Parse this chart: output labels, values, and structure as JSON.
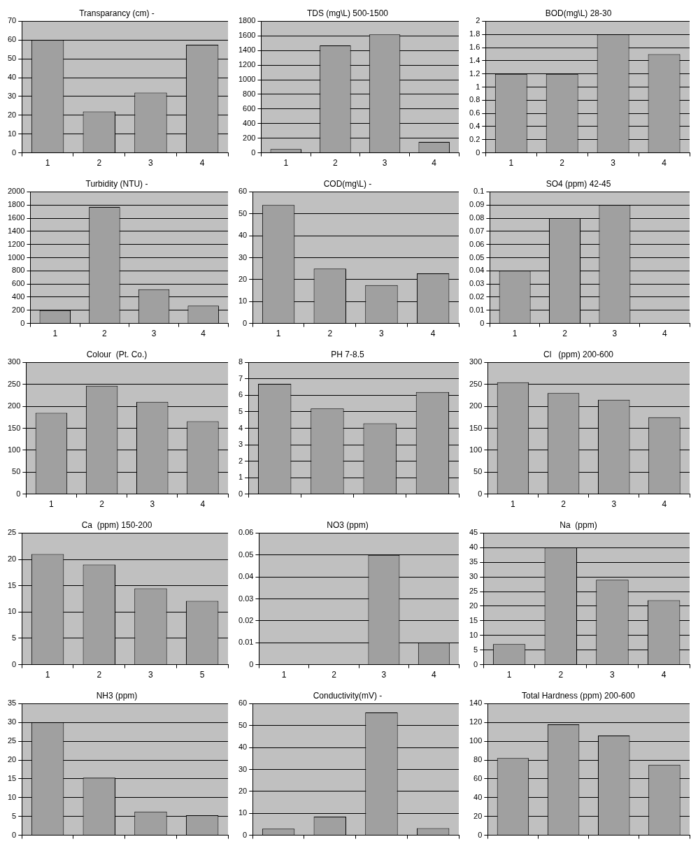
{
  "chart_data": [
    {
      "type": "bar",
      "title": "Transparancy (cm) -",
      "categories": [
        "1",
        "2",
        "3",
        "4"
      ],
      "values": [
        60,
        22,
        32,
        57.5
      ],
      "color": "#a0a0a0",
      "ylim": [
        0,
        70
      ],
      "yticks": [
        0,
        10,
        20,
        30,
        40,
        50,
        60,
        70
      ],
      "grid": "y"
    },
    {
      "type": "bar",
      "title": "TDS (mg\\L) 500-1500",
      "categories": [
        "1",
        "2",
        "3",
        "4"
      ],
      "values": [
        50,
        1470,
        1620,
        150
      ],
      "color": "#a0a0a0",
      "ylim": [
        0,
        1800
      ],
      "yticks": [
        0,
        200,
        400,
        600,
        800,
        1000,
        1200,
        1400,
        1600,
        1800
      ],
      "grid": "y"
    },
    {
      "type": "bar",
      "title": "BOD(mg\\L) 28-30",
      "categories": [
        "1",
        "2",
        "3",
        "4"
      ],
      "values": [
        1.2,
        1.2,
        1.8,
        1.5
      ],
      "color": "#a0a0a0",
      "ylim": [
        0,
        2
      ],
      "yticks": [
        0,
        0.2,
        0.4,
        0.6,
        0.8,
        1,
        1.2,
        1.4,
        1.6,
        1.8,
        2
      ],
      "grid": "y"
    },
    {
      "type": "bar",
      "title": "Turbidity (NTU) -",
      "categories": [
        "1",
        "2",
        "3",
        "4"
      ],
      "values": [
        200,
        1770,
        520,
        270
      ],
      "color": "#a0a0a0",
      "ylim": [
        0,
        2000
      ],
      "yticks": [
        0,
        200,
        400,
        600,
        800,
        1000,
        1200,
        1400,
        1600,
        1800,
        2000
      ],
      "grid": "y"
    },
    {
      "type": "bar",
      "title": "COD(mg\\L) -",
      "categories": [
        "1",
        "2",
        "3",
        "4"
      ],
      "values": [
        54,
        25,
        17.5,
        22.8
      ],
      "color": "#a0a0a0",
      "ylim": [
        0,
        60
      ],
      "yticks": [
        0,
        10,
        20,
        30,
        40,
        50,
        60
      ],
      "grid": "y"
    },
    {
      "type": "bar",
      "title": "SO4 (ppm) 42-45",
      "categories": [
        "1",
        "2",
        "3",
        "4"
      ],
      "values": [
        0.04,
        0.08,
        0.09,
        0
      ],
      "color": "#a0a0a0",
      "ylim": [
        0,
        0.1
      ],
      "yticks": [
        0,
        0.01,
        0.02,
        0.03,
        0.04,
        0.05,
        0.06,
        0.07,
        0.08,
        0.09,
        0.1
      ],
      "grid": "y"
    },
    {
      "type": "bar",
      "title": "Colour  (Pt. Co.)",
      "categories": [
        "1",
        "2",
        "3",
        "4"
      ],
      "values": [
        185,
        247,
        210,
        166
      ],
      "color": "#a0a0a0",
      "ylim": [
        0,
        300
      ],
      "yticks": [
        0,
        50,
        100,
        150,
        200,
        250,
        300
      ],
      "grid": "y"
    },
    {
      "type": "bar",
      "title": "PH 7-8.5",
      "categories": [
        null,
        null,
        null,
        null
      ],
      "values": [
        6.7,
        5.2,
        4.3,
        6.2
      ],
      "color": "#a0a0a0",
      "ylim": [
        0,
        8
      ],
      "yticks": [
        0,
        1,
        2,
        3,
        4,
        5,
        6,
        7,
        8
      ],
      "grid": "y"
    },
    {
      "type": "bar",
      "title": "Cl   (ppm) 200-600",
      "categories": [
        "1",
        "2",
        "3",
        "4"
      ],
      "values": [
        255,
        230,
        215,
        175
      ],
      "color": "#a0a0a0",
      "ylim": [
        0,
        300
      ],
      "yticks": [
        0,
        50,
        100,
        150,
        200,
        250,
        300
      ],
      "grid": "y"
    },
    {
      "type": "bar",
      "title": "Ca  (ppm) 150-200",
      "categories": [
        "1",
        "2",
        "3",
        "5"
      ],
      "values": [
        21,
        19,
        14.5,
        12.1
      ],
      "color": "#a0a0a0",
      "ylim": [
        0,
        25
      ],
      "yticks": [
        0,
        5,
        10,
        15,
        20,
        25
      ],
      "grid": "y"
    },
    {
      "type": "bar",
      "title": "NO3 (ppm)",
      "categories": [
        "1",
        "2",
        "3",
        "4"
      ],
      "values": [
        0,
        0,
        0.05,
        0.01
      ],
      "color": "#a0a0a0",
      "ylim": [
        0,
        0.06
      ],
      "yticks": [
        0,
        0.01,
        0.02,
        0.03,
        0.04,
        0.05,
        0.06
      ],
      "grid": "y"
    },
    {
      "type": "bar",
      "title": "Na  (ppm)",
      "categories": [
        "1",
        "2",
        "3",
        "4"
      ],
      "values": [
        7,
        40,
        29,
        22
      ],
      "color": "#a0a0a0",
      "ylim": [
        0,
        45
      ],
      "yticks": [
        0,
        5,
        10,
        15,
        20,
        25,
        30,
        35,
        40,
        45
      ],
      "grid": "y"
    },
    {
      "type": "bar",
      "title": "NH3 (ppm)",
      "categories": [
        null,
        null,
        null,
        null
      ],
      "values": [
        30,
        15.3,
        6.3,
        5.3
      ],
      "color": "#a0a0a0",
      "ylim": [
        0,
        35
      ],
      "yticks": [
        0,
        5,
        10,
        15,
        20,
        25,
        30,
        35
      ],
      "grid": "y"
    },
    {
      "type": "bar",
      "title": "Conductivity(mV) -",
      "categories": [
        null,
        null,
        null,
        null
      ],
      "values": [
        3,
        8.5,
        56,
        3.2
      ],
      "color": "#a0a0a0",
      "ylim": [
        0,
        60
      ],
      "yticks": [
        0,
        10,
        20,
        30,
        40,
        50,
        60
      ],
      "grid": "y"
    },
    {
      "type": "bar",
      "title": "Total Hardness (ppm) 200-600",
      "categories": [
        null,
        null,
        null,
        null
      ],
      "values": [
        82,
        118,
        106,
        75
      ],
      "color": "#a0a0a0",
      "ylim": [
        0,
        140
      ],
      "yticks": [
        0,
        20,
        40,
        60,
        80,
        100,
        120,
        140
      ],
      "grid": "y"
    }
  ]
}
